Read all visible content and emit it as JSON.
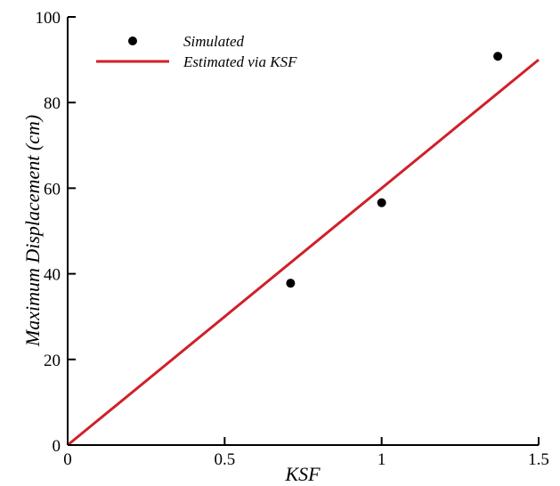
{
  "chart_data": {
    "type": "scatter",
    "xlabel": "KSF",
    "ylabel": "Maximum Displacement (cm)",
    "xlim": [
      0,
      1.5
    ],
    "ylim": [
      0,
      100
    ],
    "x_ticks": [
      0,
      0.5,
      1,
      1.5
    ],
    "x_tick_labels": [
      "0",
      "0.5",
      "1",
      "1.5"
    ],
    "y_ticks": [
      0,
      20,
      40,
      60,
      80,
      100
    ],
    "y_tick_labels": [
      "0",
      "20",
      "40",
      "60",
      "80",
      "100"
    ],
    "grid": false,
    "legend_position": "top-left",
    "series": [
      {
        "name": "Simulated",
        "kind": "scatter",
        "color": "#000000",
        "x": [
          0.71,
          1.0,
          1.37
        ],
        "y": [
          37.8,
          56.6,
          90.8
        ]
      },
      {
        "name": "Estimated via KSF",
        "kind": "line",
        "color": "#d0202a",
        "x": [
          0,
          1.5
        ],
        "y": [
          0,
          90
        ]
      }
    ]
  }
}
